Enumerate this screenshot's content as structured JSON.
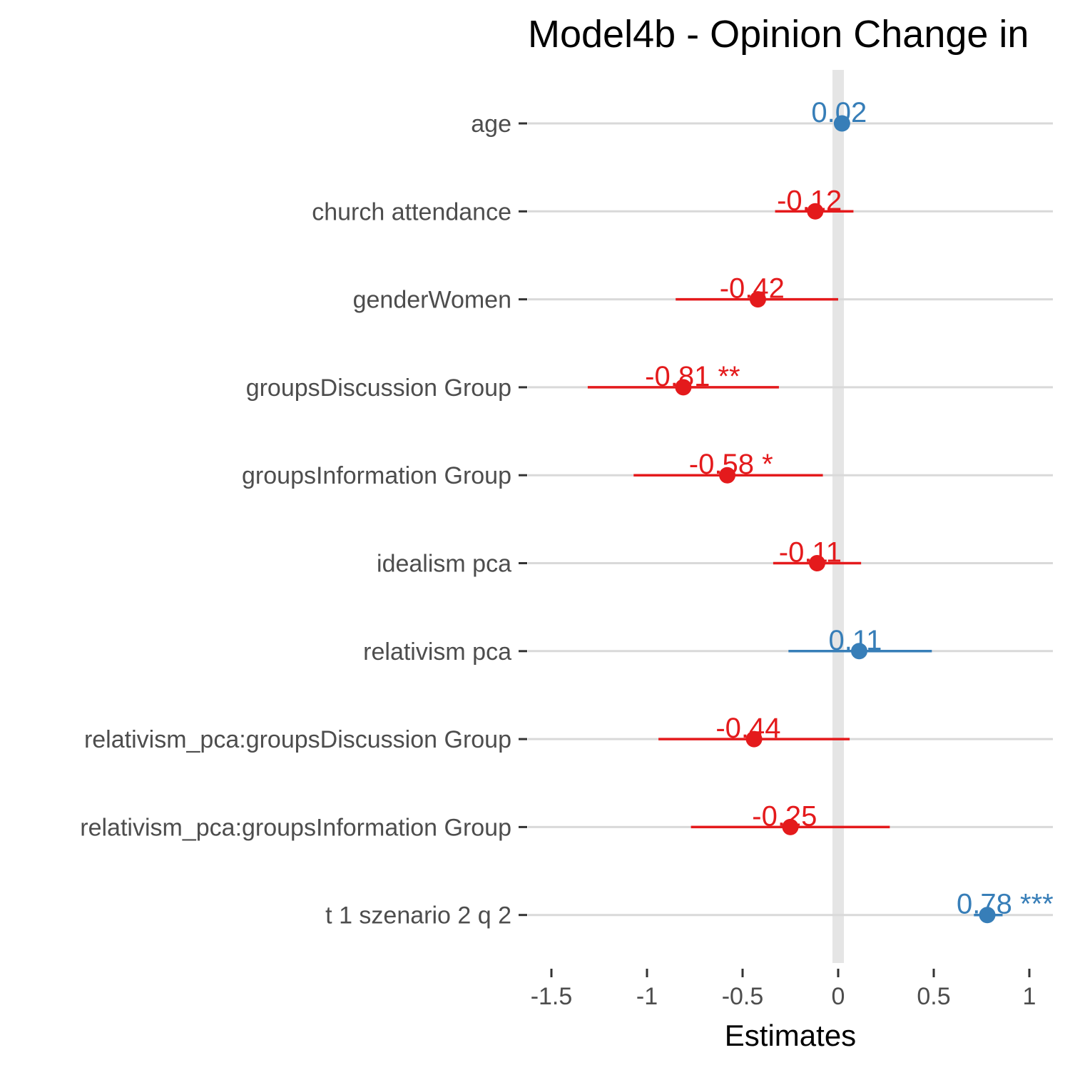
{
  "chart_data": {
    "type": "forest",
    "title": "Model4b - Opinion Change in",
    "xlabel": "Estimates",
    "xlim": [
      -1.5,
      1.0
    ],
    "xticks": [
      -1.5,
      -1,
      -0.5,
      0,
      0.5,
      1
    ],
    "xtick_labels": [
      "-1.5",
      "-1",
      "-0.5",
      "0",
      "0.5",
      "1"
    ],
    "reference_line": 0,
    "grid": "horizontal",
    "colors": {
      "positive": "#377eb8",
      "negative": "#e41a1c",
      "reference": "#e5e5e5",
      "grid": "#d9d9d9"
    },
    "terms": [
      {
        "term": "age",
        "estimate": 0.02,
        "ci": [
          0.01,
          0.03
        ],
        "label": "0.02"
      },
      {
        "term": "church attendance",
        "estimate": -0.12,
        "ci": [
          -0.33,
          0.08
        ],
        "label": "-0.12"
      },
      {
        "term": "genderWomen",
        "estimate": -0.42,
        "ci": [
          -0.85,
          0.0
        ],
        "label": "-0.42"
      },
      {
        "term": "groupsDiscussion Group",
        "estimate": -0.81,
        "ci": [
          -1.31,
          -0.31
        ],
        "label": "-0.81 **"
      },
      {
        "term": "groupsInformation Group",
        "estimate": -0.58,
        "ci": [
          -1.07,
          -0.08
        ],
        "label": "-0.58 *"
      },
      {
        "term": "idealism pca",
        "estimate": -0.11,
        "ci": [
          -0.34,
          0.12
        ],
        "label": "-0.11"
      },
      {
        "term": "relativism pca",
        "estimate": 0.11,
        "ci": [
          -0.26,
          0.49
        ],
        "label": "0.11"
      },
      {
        "term": "relativism_pca:groupsDiscussion Group",
        "estimate": -0.44,
        "ci": [
          -0.94,
          0.06
        ],
        "label": "-0.44"
      },
      {
        "term": "relativism_pca:groupsInformation Group",
        "estimate": -0.25,
        "ci": [
          -0.77,
          0.27
        ],
        "label": "-0.25"
      },
      {
        "term": "t 1 szenario 2 q 2",
        "estimate": 0.78,
        "ci": [
          0.71,
          0.86
        ],
        "label": "0.78 ***"
      }
    ]
  }
}
